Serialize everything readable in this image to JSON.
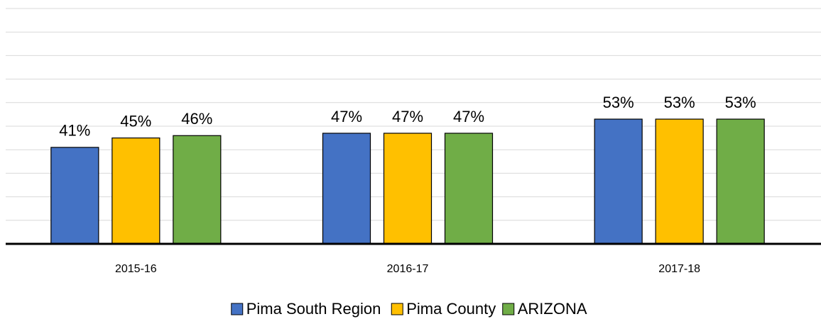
{
  "chart_data": {
    "type": "bar",
    "categories": [
      "2015-16",
      "2016-17",
      "2017-18"
    ],
    "series": [
      {
        "name": "Pima South Region",
        "color": "#4472c4",
        "values": [
          41,
          47,
          53
        ],
        "value_labels": [
          "41%",
          "47%",
          "53%"
        ]
      },
      {
        "name": "Pima County",
        "color": "#ffc000",
        "values": [
          45,
          47,
          53
        ],
        "value_labels": [
          "45%",
          "47%",
          "53%"
        ]
      },
      {
        "name": "ARIZONA",
        "color": "#70ad47",
        "values": [
          46,
          47,
          53
        ],
        "value_labels": [
          "46%",
          "47%",
          "53%"
        ]
      }
    ],
    "ylim": [
      0,
      100
    ],
    "yticks": [
      0,
      10,
      20,
      30,
      40,
      50,
      60,
      70,
      80,
      90,
      100
    ],
    "grid": true,
    "legend": "bottom"
  }
}
